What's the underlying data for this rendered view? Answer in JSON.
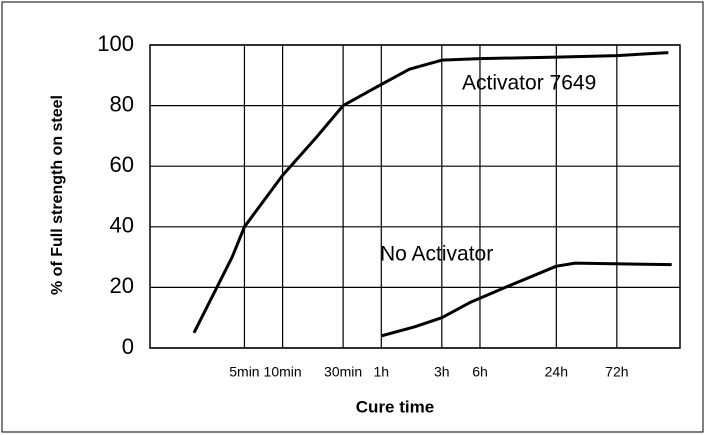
{
  "chart_data": {
    "type": "line",
    "x_label": "Cure time",
    "y_label": "% of Full strength on steel",
    "annotations": [
      "Activator 7649",
      "No Activator"
    ],
    "xscale": "log",
    "xlim": [
      0.9,
      13600
    ],
    "xticks": [
      {
        "value": 5,
        "label": "5min"
      },
      {
        "value": 10,
        "label": "10min"
      },
      {
        "value": 30,
        "label": "30min"
      },
      {
        "value": 60,
        "label": "1h"
      },
      {
        "value": 180,
        "label": "3h"
      },
      {
        "value": 360,
        "label": "6h"
      },
      {
        "value": 1440,
        "label": "24h"
      },
      {
        "value": 4320,
        "label": "72h"
      }
    ],
    "ylim": [
      0,
      100
    ],
    "yticks": [
      0,
      20,
      40,
      60,
      80,
      100
    ],
    "grid": true,
    "series": [
      {
        "name": "Activator 7649",
        "color": "#000000",
        "x": [
          2,
          4,
          5,
          10,
          18,
          30,
          60,
          100,
          180,
          360,
          1440,
          4320,
          11000
        ],
        "values": [
          5,
          30,
          40,
          57,
          69,
          80,
          87,
          92,
          95,
          95.5,
          96,
          96.5,
          97.5
        ]
      },
      {
        "name": "No Activator",
        "color": "#000000",
        "x": [
          60,
          110,
          180,
          300,
          570,
          1440,
          2030,
          11700
        ],
        "values": [
          4,
          7,
          10,
          15,
          20,
          27,
          28,
          27.5
        ]
      }
    ]
  }
}
